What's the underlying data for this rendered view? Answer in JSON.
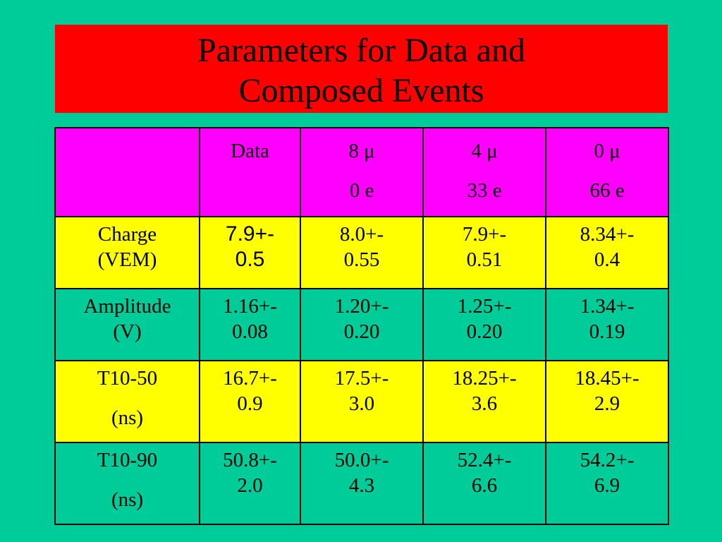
{
  "title": {
    "line1": "Parameters for Data and",
    "line2": "Composed Events"
  },
  "table": {
    "header": {
      "corner": "",
      "data": "Data",
      "col8": {
        "line1": "8 μ",
        "line2": "0 e"
      },
      "col4": {
        "line1": "4 μ",
        "line2": "33 e"
      },
      "col0": {
        "line1": "0 μ",
        "line2": "66 e"
      }
    },
    "rows": [
      {
        "label": [
          "Charge",
          "(VEM)"
        ],
        "values": [
          [
            "7.9+-",
            "0.5"
          ],
          [
            "8.0+-",
            "0.55"
          ],
          [
            "7.9+-",
            "0.51"
          ],
          [
            "8.34+-",
            "0.4"
          ]
        ]
      },
      {
        "label": [
          "Amplitude",
          "(V)"
        ],
        "values": [
          [
            "1.16+-",
            "0.08"
          ],
          [
            "1.20+-",
            "0.20"
          ],
          [
            "1.25+-",
            "0.20"
          ],
          [
            "1.34+-",
            "0.19"
          ]
        ]
      },
      {
        "label": [
          "T10-50",
          "(ns)"
        ],
        "values": [
          [
            "16.7+-",
            "0.9"
          ],
          [
            "17.5+-",
            "3.0"
          ],
          [
            "18.25+-",
            "3.6"
          ],
          [
            "18.45+-",
            "2.9"
          ]
        ]
      },
      {
        "label": [
          "T10-90",
          "(ns)"
        ],
        "values": [
          [
            "50.8+-",
            "2.0"
          ],
          [
            "50.0+-",
            "4.3"
          ],
          [
            "52.4+-",
            "6.6"
          ],
          [
            "54.2+-",
            "6.9"
          ]
        ]
      }
    ]
  },
  "colors": {
    "background": "#00CC99",
    "title_box": "#FF0000",
    "header_row": "#FF00FF",
    "highlight_row": "#FFFF00"
  }
}
